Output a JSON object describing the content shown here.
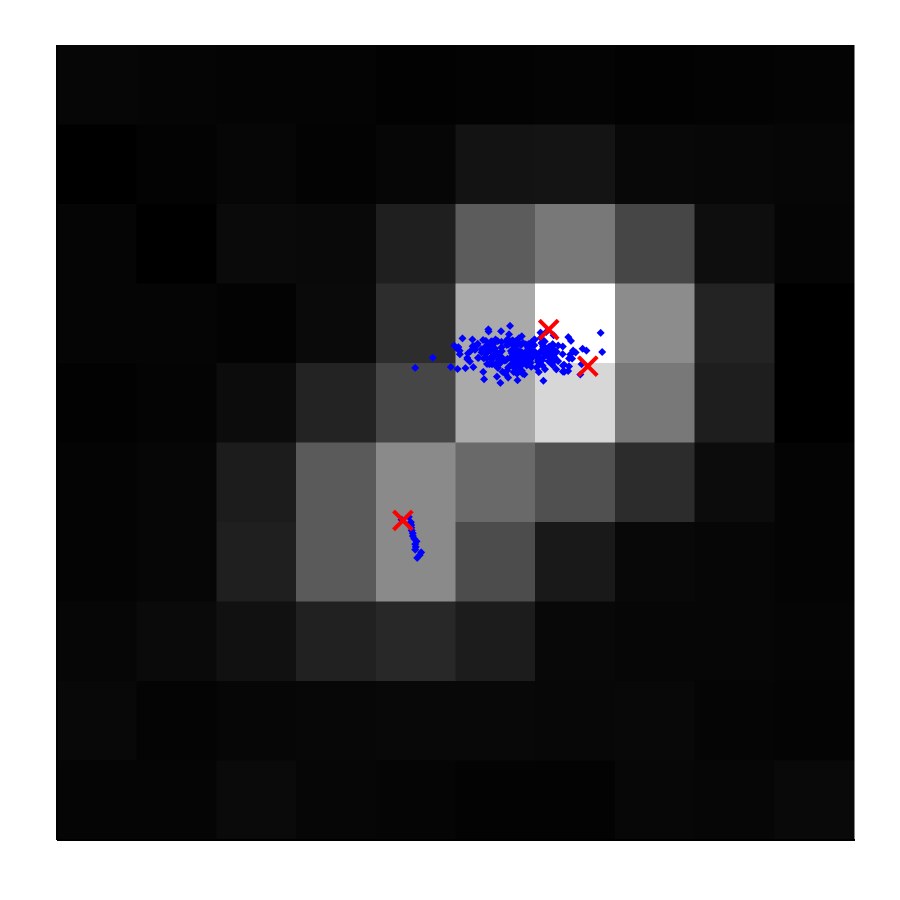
{
  "chart_data": {
    "type": "heatmap",
    "title": "",
    "xlabel": "",
    "ylabel": "",
    "colormap": "gray",
    "grid": false,
    "rows": 10,
    "cols": 10,
    "intensity": [
      [
        6,
        5,
        4,
        4,
        2,
        3,
        4,
        2,
        3,
        4
      ],
      [
        0,
        3,
        6,
        3,
        6,
        19,
        20,
        8,
        7,
        6
      ],
      [
        5,
        0,
        10,
        9,
        31,
        92,
        120,
        70,
        14,
        5
      ],
      [
        5,
        5,
        3,
        10,
        45,
        170,
        255,
        140,
        35,
        0
      ],
      [
        2,
        4,
        12,
        35,
        70,
        170,
        215,
        120,
        30,
        0
      ],
      [
        4,
        6,
        28,
        90,
        138,
        105,
        80,
        44,
        12,
        4
      ],
      [
        4,
        6,
        31,
        90,
        138,
        76,
        25,
        8,
        6,
        4
      ],
      [
        6,
        10,
        17,
        33,
        40,
        28,
        8,
        6,
        6,
        5
      ],
      [
        8,
        4,
        6,
        7,
        8,
        8,
        7,
        8,
        5,
        4
      ],
      [
        5,
        5,
        10,
        6,
        5,
        3,
        3,
        7,
        6,
        9
      ]
    ],
    "peak_markers": [
      {
        "col": 6.17,
        "row": 3.58,
        "color": "#ff0000"
      },
      {
        "col": 6.66,
        "row": 4.04,
        "color": "#ff0000"
      },
      {
        "col": 4.34,
        "row": 5.98,
        "color": "#ff0000"
      }
    ],
    "point_clusters": [
      {
        "color": "#0000ff",
        "center_col": 5.8,
        "center_row": 3.9,
        "spread_col": 0.75,
        "spread_row": 0.28,
        "count": 260
      },
      {
        "color": "#0000ff",
        "center_col": 4.45,
        "center_row": 6.1,
        "spread_col": 0.08,
        "spread_row": 0.1,
        "count": 16
      }
    ]
  }
}
